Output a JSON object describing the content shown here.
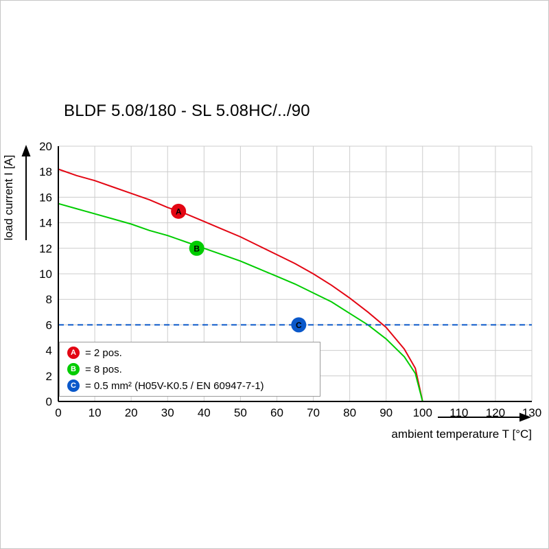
{
  "title": "BLDF 5.08/180 - SL 5.08HC/../90",
  "axes": {
    "x_label": "ambient temperature T [°C]",
    "y_label": "load current I [A]"
  },
  "legend": {
    "position": "bottom-left inside plot",
    "items": [
      {
        "letter": "A",
        "color": "#e30613",
        "label": "= 2 pos."
      },
      {
        "letter": "B",
        "color": "#00cc00",
        "label": "= 8 pos."
      },
      {
        "letter": "C",
        "color": "#0a58ca",
        "label": "= 0.5 mm² (H05V-K0.5 / EN 60947-7-1)"
      }
    ]
  },
  "chart_data": {
    "type": "line",
    "title": "BLDF 5.08/180 - SL 5.08HC/../90",
    "xlabel": "ambient temperature T [°C]",
    "ylabel": "load current I [A]",
    "xlim": [
      0,
      130
    ],
    "ylim": [
      0,
      20
    ],
    "x_ticks": [
      0,
      10,
      20,
      30,
      40,
      50,
      60,
      70,
      80,
      90,
      100,
      110,
      120,
      130
    ],
    "y_ticks": [
      0,
      2,
      4,
      6,
      8,
      10,
      12,
      14,
      16,
      18,
      20
    ],
    "grid": true,
    "grid_color": "#cccccc",
    "axis_color": "#000000",
    "series": [
      {
        "name": "A",
        "label": "2 pos.",
        "color": "#e30613",
        "dashed": false,
        "marker": {
          "x": 33,
          "y": 14.9
        },
        "points": [
          [
            0,
            18.2
          ],
          [
            5,
            17.7
          ],
          [
            10,
            17.3
          ],
          [
            15,
            16.8
          ],
          [
            20,
            16.3
          ],
          [
            25,
            15.8
          ],
          [
            30,
            15.2
          ],
          [
            35,
            14.7
          ],
          [
            40,
            14.1
          ],
          [
            45,
            13.5
          ],
          [
            50,
            12.9
          ],
          [
            55,
            12.2
          ],
          [
            60,
            11.5
          ],
          [
            65,
            10.8
          ],
          [
            70,
            10.0
          ],
          [
            75,
            9.1
          ],
          [
            80,
            8.1
          ],
          [
            85,
            7.0
          ],
          [
            90,
            5.8
          ],
          [
            95,
            4.1
          ],
          [
            98,
            2.6
          ],
          [
            100,
            0
          ]
        ]
      },
      {
        "name": "B",
        "label": "8 pos.",
        "color": "#00cc00",
        "dashed": false,
        "marker": {
          "x": 38,
          "y": 12.0
        },
        "points": [
          [
            0,
            15.5
          ],
          [
            5,
            15.1
          ],
          [
            10,
            14.7
          ],
          [
            15,
            14.3
          ],
          [
            20,
            13.9
          ],
          [
            25,
            13.4
          ],
          [
            30,
            13.0
          ],
          [
            35,
            12.5
          ],
          [
            40,
            12.0
          ],
          [
            45,
            11.5
          ],
          [
            50,
            11.0
          ],
          [
            55,
            10.4
          ],
          [
            60,
            9.8
          ],
          [
            65,
            9.2
          ],
          [
            70,
            8.5
          ],
          [
            75,
            7.8
          ],
          [
            80,
            6.9
          ],
          [
            85,
            6.0
          ],
          [
            90,
            4.9
          ],
          [
            95,
            3.5
          ],
          [
            98,
            2.2
          ],
          [
            100,
            0
          ]
        ]
      },
      {
        "name": "C",
        "label": "0.5 mm² (H05V-K0.5 / EN 60947-7-1)",
        "color": "#0a58ca",
        "dashed": true,
        "marker": {
          "x": 66,
          "y": 6.0
        },
        "points": [
          [
            0,
            6
          ],
          [
            130,
            6
          ]
        ]
      }
    ]
  }
}
